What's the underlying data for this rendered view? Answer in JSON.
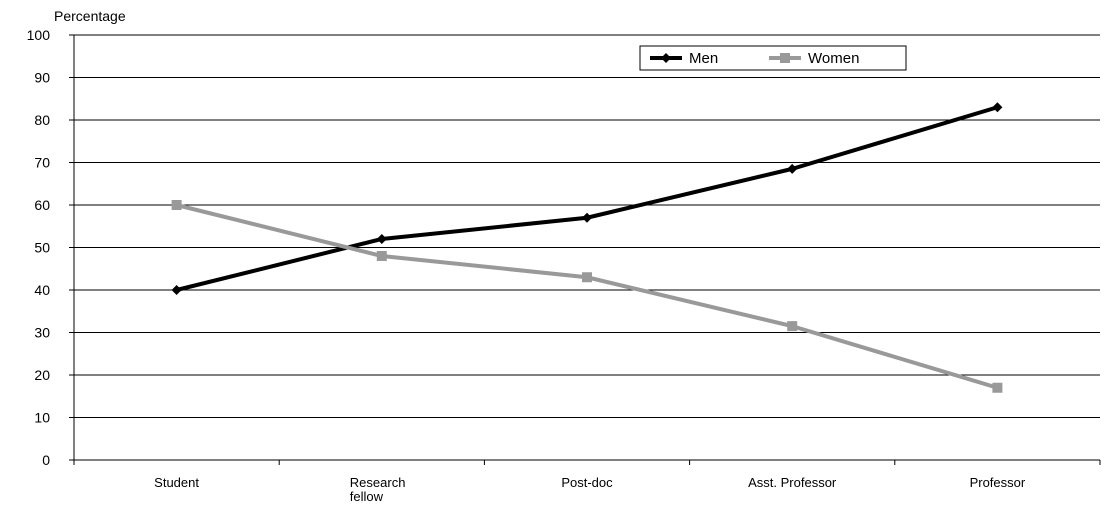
{
  "chart_data": {
    "type": "line",
    "title": "",
    "ylabel": "Percentage",
    "xlabel": "",
    "categories": [
      "Student",
      "Research fellow",
      "Post-doc",
      "Asst. Professor",
      "Professor"
    ],
    "ylim": [
      0,
      100
    ],
    "yticks": [
      0,
      10,
      20,
      30,
      40,
      50,
      60,
      70,
      80,
      90,
      100
    ],
    "grid": true,
    "legend_position": "top-right",
    "series": [
      {
        "name": "Men",
        "values": [
          40,
          52,
          57,
          68.5,
          83
        ],
        "color": "#000000",
        "marker": "diamond"
      },
      {
        "name": "Women",
        "values": [
          60,
          48,
          43,
          31.5,
          17
        ],
        "color": "#999999",
        "marker": "square"
      }
    ]
  }
}
